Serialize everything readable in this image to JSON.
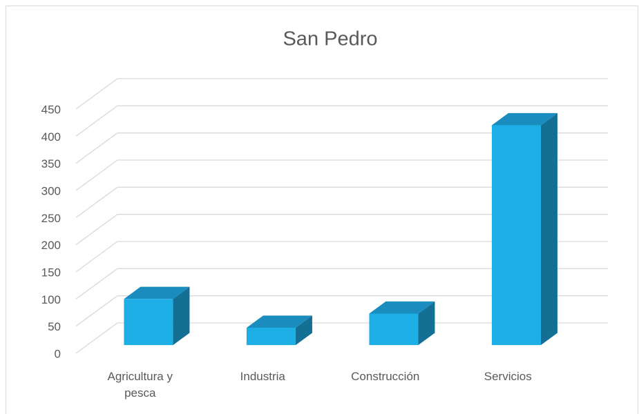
{
  "chart_data": {
    "type": "bar3d",
    "title": "San Pedro",
    "categories": [
      "Agricultura y pesca",
      "Industria",
      "Construcción",
      "Servicios"
    ],
    "values": [
      85,
      32,
      58,
      405
    ],
    "color": "#1eaee6",
    "ylim": [
      0,
      450
    ],
    "yticks": [
      0,
      50,
      100,
      150,
      200,
      250,
      300,
      350,
      400,
      450
    ],
    "grid": true
  }
}
